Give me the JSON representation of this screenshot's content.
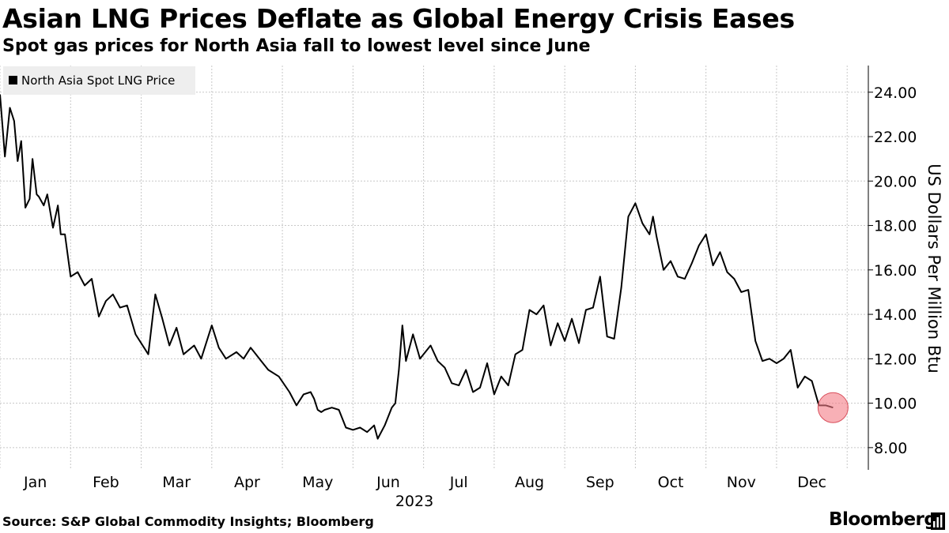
{
  "header": {
    "title": "Asian LNG Prices Deflate as Global Energy Crisis Eases",
    "subtitle": "Spot gas prices for North Asia fall to lowest level since June"
  },
  "footer": {
    "source": "Source: S&P Global Commodity Insights; Bloomberg",
    "brand": "Bloomberg"
  },
  "colors": {
    "line": "#000000",
    "grid": "#c8c8c8",
    "legend_bg": "#eeeeee",
    "highlight": "#f47c86"
  },
  "chart_data": {
    "type": "line",
    "title": "Asian LNG Prices Deflate as Global Energy Crisis Eases",
    "subtitle": "Spot gas prices for North Asia fall to lowest level since June",
    "xlabel": "2023",
    "ylabel": "US Dollars Per Million Btu",
    "ylim": [
      7,
      25.2
    ],
    "y_ticks": [
      8,
      10,
      12,
      14,
      16,
      18,
      20,
      22,
      24
    ],
    "y_tick_labels": [
      "8.00",
      "10.00",
      "12.00",
      "14.00",
      "16.00",
      "18.00",
      "20.00",
      "22.00",
      "24.00"
    ],
    "x_range": [
      0,
      12.3
    ],
    "x_ticks": [
      0.5,
      1.5,
      2.5,
      3.5,
      4.5,
      5.5,
      6.5,
      7.5,
      8.5,
      9.5,
      10.5,
      11.5
    ],
    "x_tick_labels": [
      "Jan",
      "Feb",
      "Mar",
      "Apr",
      "May",
      "Jun",
      "Jul",
      "Aug",
      "Sep",
      "Oct",
      "Nov",
      "Dec"
    ],
    "x_gridlines": [
      0,
      1,
      2,
      3,
      4,
      5,
      6,
      7,
      8,
      9,
      10,
      11,
      12
    ],
    "grid": true,
    "legend": {
      "position": "top-left",
      "entries": [
        "North Asia Spot LNG Price"
      ]
    },
    "highlight_last_point": true,
    "series": [
      {
        "name": "North Asia Spot LNG Price",
        "x": [
          0.0,
          0.07,
          0.14,
          0.2,
          0.25,
          0.3,
          0.36,
          0.42,
          0.46,
          0.52,
          0.55,
          0.62,
          0.67,
          0.75,
          0.82,
          0.86,
          0.92,
          1.0,
          1.1,
          1.2,
          1.3,
          1.4,
          1.5,
          1.6,
          1.7,
          1.8,
          1.92,
          2.1,
          2.2,
          2.3,
          2.4,
          2.5,
          2.6,
          2.75,
          2.85,
          3.0,
          3.1,
          3.2,
          3.35,
          3.45,
          3.55,
          3.6,
          3.7,
          3.8,
          3.95,
          4.1,
          4.2,
          4.3,
          4.4,
          4.45,
          4.5,
          4.55,
          4.6,
          4.7,
          4.8,
          4.9,
          5.0,
          5.1,
          5.2,
          5.3,
          5.35,
          5.45,
          5.55,
          5.6,
          5.65,
          5.7,
          5.75,
          5.85,
          5.95,
          6.1,
          6.2,
          6.3,
          6.4,
          6.5,
          6.6,
          6.7,
          6.8,
          6.9,
          7.0,
          7.1,
          7.2,
          7.3,
          7.4,
          7.5,
          7.6,
          7.7,
          7.8,
          7.9,
          8.0,
          8.1,
          8.2,
          8.3,
          8.4,
          8.5,
          8.6,
          8.7,
          8.8,
          8.9,
          9.0,
          9.1,
          9.2,
          9.25,
          9.3,
          9.4,
          9.5,
          9.6,
          9.7,
          9.8,
          9.9,
          10.0,
          10.1,
          10.2,
          10.3,
          10.4,
          10.5,
          10.6,
          10.7,
          10.8,
          10.9,
          11.0,
          11.1,
          11.2,
          11.3,
          11.4,
          11.5,
          11.6,
          11.7,
          11.8
        ],
        "values": [
          23.9,
          21.1,
          23.3,
          22.7,
          20.9,
          21.8,
          18.8,
          19.2,
          21.0,
          19.4,
          19.3,
          18.9,
          19.4,
          17.9,
          18.9,
          17.6,
          17.6,
          15.7,
          15.9,
          15.3,
          15.6,
          13.9,
          14.6,
          14.9,
          14.3,
          14.4,
          13.1,
          12.2,
          14.9,
          13.8,
          12.6,
          13.4,
          12.2,
          12.6,
          12.0,
          13.5,
          12.5,
          12.0,
          12.3,
          12.0,
          12.5,
          12.3,
          11.9,
          11.5,
          11.2,
          10.5,
          9.9,
          10.4,
          10.5,
          10.2,
          9.7,
          9.6,
          9.7,
          9.8,
          9.7,
          8.9,
          8.8,
          8.9,
          8.7,
          9.0,
          8.4,
          9.0,
          9.8,
          10.0,
          11.5,
          13.5,
          11.9,
          13.1,
          12.0,
          12.6,
          11.9,
          11.6,
          10.9,
          10.8,
          11.5,
          10.5,
          10.7,
          11.8,
          10.4,
          11.2,
          10.8,
          12.2,
          12.4,
          14.2,
          14.0,
          14.4,
          12.6,
          13.6,
          12.8,
          13.8,
          12.7,
          14.2,
          14.3,
          15.7,
          13.0,
          12.9,
          15.2,
          18.4,
          19.0,
          18.1,
          17.6,
          18.4,
          17.5,
          16.0,
          16.4,
          15.7,
          15.6,
          16.3,
          17.1,
          17.6,
          16.2,
          16.8,
          15.9,
          15.6,
          15.0,
          15.1,
          12.8,
          11.9,
          12.0,
          11.8,
          12.0,
          12.4,
          10.7,
          11.2,
          11.0,
          9.9,
          9.9,
          9.8
        ]
      }
    ]
  }
}
